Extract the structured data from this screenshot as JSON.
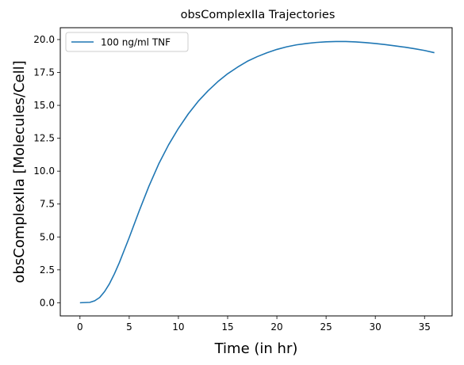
{
  "chart_data": {
    "type": "line",
    "title": "obsComplexIIa Trajectories",
    "xlabel": "Time (in hr)",
    "ylabel": "obsComplexIIa [Molecules/Cell]",
    "xlim": [
      -2.0,
      37.8
    ],
    "ylim": [
      -1.0,
      20.9
    ],
    "x_ticks": [
      0,
      5,
      10,
      15,
      20,
      25,
      30,
      35
    ],
    "x_tick_labels": [
      "0",
      "5",
      "10",
      "15",
      "20",
      "25",
      "30",
      "35"
    ],
    "y_ticks": [
      0.0,
      2.5,
      5.0,
      7.5,
      10.0,
      12.5,
      15.0,
      17.5,
      20.0
    ],
    "y_tick_labels": [
      "0.0",
      "2.5",
      "5.0",
      "7.5",
      "10.0",
      "12.5",
      "15.0",
      "17.5",
      "20.0"
    ],
    "grid": false,
    "legend_position": "top-left",
    "series": [
      {
        "name": "100 ng/ml TNF",
        "color": "#1f77b4",
        "x": [
          0,
          1,
          1.5,
          2,
          2.5,
          3,
          3.5,
          4,
          4.5,
          5,
          5.5,
          6,
          7,
          8,
          9,
          10,
          11,
          12,
          13,
          14,
          15,
          16,
          17,
          18,
          19,
          20,
          21,
          22,
          23,
          24,
          25,
          26,
          27,
          28,
          29,
          30,
          31,
          32,
          33,
          34,
          35,
          36
        ],
        "y": [
          0.0,
          0.03,
          0.15,
          0.4,
          0.85,
          1.45,
          2.2,
          3.05,
          4.0,
          4.95,
          5.95,
          6.95,
          8.85,
          10.55,
          12.0,
          13.25,
          14.35,
          15.3,
          16.1,
          16.8,
          17.4,
          17.9,
          18.35,
          18.7,
          19.0,
          19.25,
          19.45,
          19.6,
          19.7,
          19.78,
          19.83,
          19.85,
          19.85,
          19.82,
          19.77,
          19.7,
          19.62,
          19.52,
          19.42,
          19.3,
          19.17,
          19.0
        ]
      }
    ]
  }
}
